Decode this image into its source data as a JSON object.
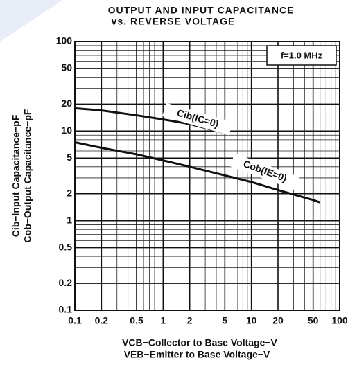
{
  "chart_data": {
    "type": "line",
    "title": [
      "OUTPUT AND INPUT CAPACITANCE",
      "vs. REVERSE VOLTAGE"
    ],
    "xlabel": [
      "VCB−Collector to Base Voltage−V",
      "VEB−Emitter to Base Voltage−V"
    ],
    "ylabel": [
      "Cib−Input Capacitance−pF",
      "Cob−Output Capacitance−pF"
    ],
    "annotation": "f=1.0 MHz",
    "xscale": "log",
    "yscale": "log",
    "grid": true,
    "xlim": [
      0.1,
      100
    ],
    "ylim": [
      0.1,
      100
    ],
    "xticks": [
      0.1,
      0.2,
      0.5,
      1,
      2,
      5,
      10,
      20,
      50,
      100
    ],
    "yticks": [
      0.1,
      0.2,
      0.5,
      1,
      2,
      5,
      10,
      20,
      50,
      100
    ],
    "xminor": [
      0.3,
      0.4,
      0.6,
      0.7,
      0.8,
      0.9,
      3,
      4,
      6,
      7,
      8,
      9,
      30,
      40,
      60,
      70,
      80,
      90
    ],
    "yminor": [
      0.3,
      0.4,
      0.6,
      0.7,
      0.8,
      0.9,
      3,
      4,
      6,
      7,
      8,
      9,
      30,
      40,
      60,
      70,
      80,
      90
    ],
    "series": [
      {
        "name": "Cib(IC=0)",
        "color": "#111111",
        "x": [
          0.1,
          0.2,
          0.5,
          1,
          2,
          5
        ],
        "values": [
          18,
          17,
          15,
          13.5,
          12,
          9.5
        ]
      },
      {
        "name": "Cob(IE=0)",
        "color": "#111111",
        "x": [
          0.1,
          0.2,
          0.5,
          1,
          2,
          5,
          10,
          20,
          50,
          60
        ],
        "values": [
          7.5,
          6.5,
          5.5,
          4.7,
          4,
          3.2,
          2.7,
          2.2,
          1.7,
          1.6
        ]
      }
    ]
  }
}
